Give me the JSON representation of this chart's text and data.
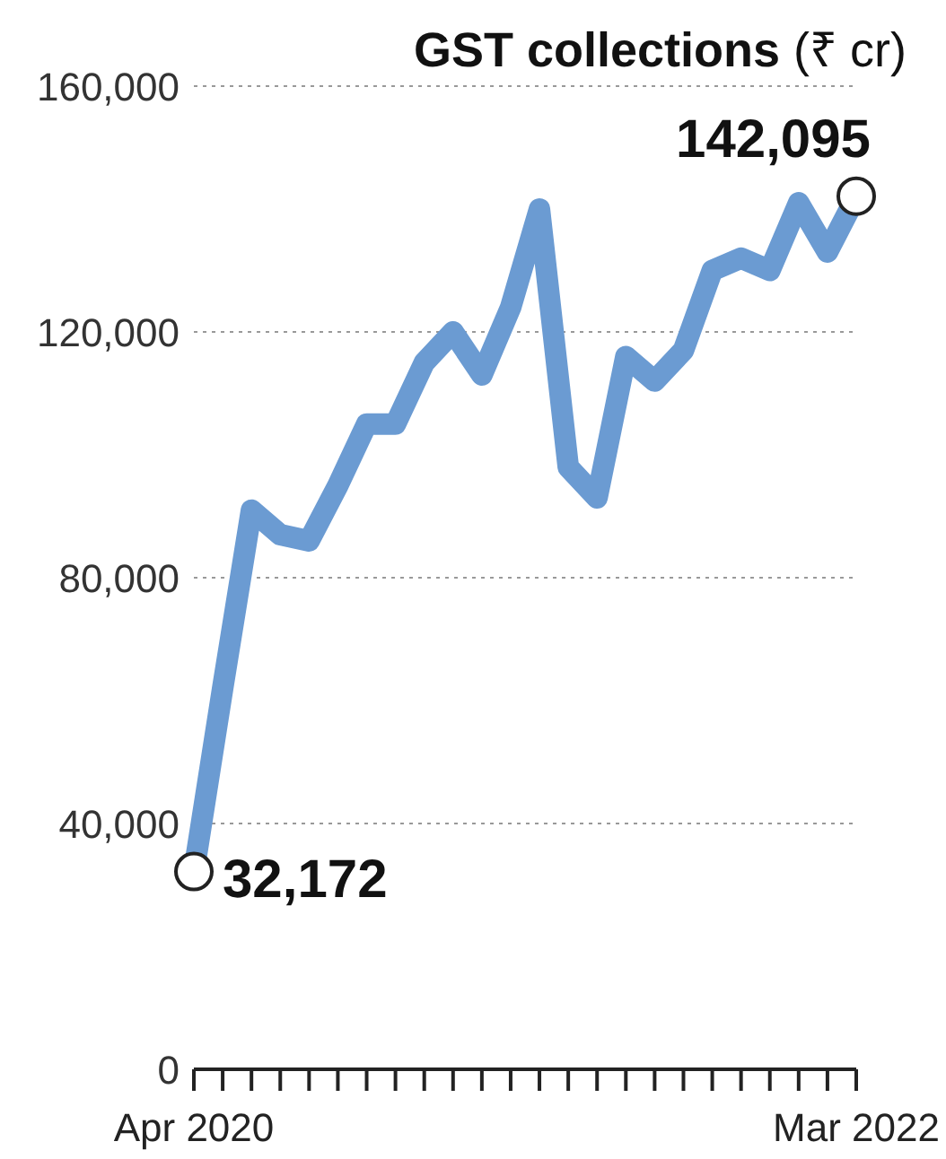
{
  "chart_data": {
    "type": "line",
    "title": "GST collections (₹ cr)",
    "categories": [
      "Apr 2020",
      null,
      null,
      null,
      null,
      null,
      null,
      null,
      null,
      null,
      null,
      null,
      null,
      null,
      null,
      null,
      null,
      null,
      null,
      null,
      null,
      null,
      null,
      "Mar 2022"
    ],
    "series": [
      {
        "color": "#6b9bd2",
        "values": [
          32172,
          62000,
          91000,
          87000,
          86000,
          95000,
          105000,
          105000,
          115000,
          120000,
          113000,
          124000,
          140000,
          98000,
          93000,
          116000,
          112000,
          117000,
          130000,
          132000,
          130000,
          141000,
          133000,
          142095
        ],
        "value_labels": [
          "32,172",
          null,
          null,
          null,
          null,
          null,
          null,
          null,
          null,
          null,
          null,
          null,
          null,
          null,
          null,
          null,
          null,
          null,
          null,
          null,
          null,
          null,
          null,
          "142,095"
        ]
      }
    ],
    "ylim": [
      0,
      160000
    ],
    "yticks": [
      0,
      {
        "value": 40000,
        "label": "40,000"
      },
      {
        "value": 80000,
        "label": "80,000"
      },
      {
        "value": 120000,
        "label": "120,000"
      },
      {
        "value": 160000,
        "label": "160,000"
      }
    ],
    "grid": "y"
  }
}
